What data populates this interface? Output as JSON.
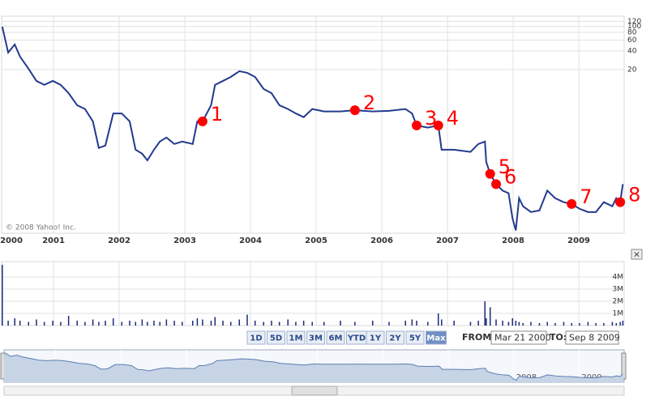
{
  "copyright": "© 2008 Yahoo! Inc.",
  "chart_data": [
    {
      "type": "line",
      "log_scale": true,
      "grid": true,
      "color": "#233a8f",
      "marker_color": "#ff0000",
      "xlim": [
        2000.21,
        2009.69
      ],
      "xticks": [
        2000,
        2001,
        2002,
        2003,
        2004,
        2005,
        2006,
        2007,
        2008,
        2009
      ],
      "ylim": [
        0.045,
        146
      ],
      "yticks": [
        120,
        100,
        80,
        60,
        40,
        20
      ],
      "x": [
        2000.22,
        2000.31,
        2000.41,
        2000.49,
        2000.62,
        2000.74,
        2000.86,
        2000.99,
        2001.11,
        2001.23,
        2001.36,
        2001.48,
        2001.6,
        2001.69,
        2001.79,
        2001.91,
        2002.04,
        2002.16,
        2002.25,
        2002.35,
        2002.43,
        2002.53,
        2002.62,
        2002.72,
        2002.84,
        2002.96,
        2003.12,
        2003.19,
        2003.27,
        2003.4,
        2003.46,
        2003.58,
        2003.7,
        2003.83,
        2003.95,
        2004.07,
        2004.2,
        2004.32,
        2004.44,
        2004.57,
        2004.69,
        2004.81,
        2004.94,
        2005.12,
        2005.37,
        2005.59,
        2005.86,
        2006.11,
        2006.36,
        2006.46,
        2006.53,
        2006.7,
        2006.86,
        2006.91,
        2007.1,
        2007.35,
        2007.47,
        2007.57,
        2007.59,
        2007.65,
        2007.74,
        2007.84,
        2007.93,
        2007.99,
        2008.04,
        2008.09,
        2008.15,
        2008.27,
        2008.4,
        2008.52,
        2008.64,
        2008.77,
        2008.89,
        2009.01,
        2009.14,
        2009.26,
        2009.38,
        2009.51,
        2009.57,
        2009.63,
        2009.67
      ],
      "values": [
        98.8,
        37.7,
        50.9,
        32.4,
        20.6,
        13.1,
        11.3,
        13.1,
        11.3,
        8.3,
        5.3,
        4.6,
        2.9,
        1.08,
        1.18,
        3.9,
        3.9,
        2.9,
        1.01,
        0.87,
        0.68,
        1.01,
        1.37,
        1.59,
        1.25,
        1.37,
        1.25,
        2.9,
        2.9,
        5.3,
        11.3,
        13.1,
        15.2,
        18.8,
        17.7,
        15.2,
        9.7,
        8.3,
        5.3,
        4.6,
        3.9,
        3.4,
        4.6,
        4.2,
        4.2,
        4.4,
        4.2,
        4.3,
        4.6,
        3.9,
        2.5,
        2.3,
        2.5,
        1.01,
        1.01,
        0.93,
        1.25,
        1.37,
        0.64,
        0.41,
        0.28,
        0.22,
        0.2,
        0.078,
        0.05,
        0.166,
        0.123,
        0.099,
        0.105,
        0.22,
        0.166,
        0.143,
        0.134,
        0.112,
        0.099,
        0.099,
        0.143,
        0.123,
        0.166,
        0.143,
        0.28
      ],
      "annotations": [
        {
          "text": "1",
          "x": 2003.27,
          "y": 2.9
        },
        {
          "text": "2",
          "x": 2005.59,
          "y": 4.4
        },
        {
          "text": "3",
          "x": 2006.53,
          "y": 2.5
        },
        {
          "text": "4",
          "x": 2006.86,
          "y": 2.5
        },
        {
          "text": "5",
          "x": 2007.65,
          "y": 0.41
        },
        {
          "text": "6",
          "x": 2007.74,
          "y": 0.28
        },
        {
          "text": "7",
          "x": 2008.89,
          "y": 0.134
        },
        {
          "text": "8",
          "x": 2009.63,
          "y": 0.143
        }
      ]
    },
    {
      "type": "bar",
      "color": "#1a2a7a",
      "ylim": [
        0,
        5270000
      ],
      "yticks": [
        {
          "value": 4000000,
          "label": "4M"
        },
        {
          "value": 3000000,
          "label": "3M"
        },
        {
          "value": 2000000,
          "label": "2M"
        },
        {
          "value": 1000000,
          "label": "1M"
        }
      ],
      "values": [
        5000000,
        400000,
        600000,
        400000,
        300000,
        500000,
        300000,
        400000,
        300000,
        800000,
        400000,
        300000,
        500000,
        300000,
        400000,
        600000,
        300000,
        400000,
        300000,
        500000,
        300000,
        400000,
        300000,
        500000,
        400000,
        300000,
        400000,
        600000,
        500000,
        400000,
        700000,
        400000,
        300000,
        500000,
        900000,
        400000,
        300000,
        400000,
        300000,
        500000,
        300000,
        400000,
        300000,
        300000,
        400000,
        300000,
        400000,
        300000,
        400000,
        500000,
        400000,
        300000,
        1000000,
        500000,
        400000,
        300000,
        400000,
        2000000,
        600000,
        1500000,
        500000,
        400000,
        300000,
        600000,
        400000,
        300000,
        200000,
        300000,
        200000,
        300000,
        200000,
        300000,
        200000,
        200000,
        300000,
        200000,
        200000,
        300000,
        200000,
        300000,
        400000
      ]
    }
  ],
  "controls": {
    "ranges": [
      "1D",
      "5D",
      "1M",
      "3M",
      "6M",
      "YTD",
      "1Y",
      "2Y",
      "5Y",
      "Max"
    ],
    "active": "Max",
    "from_label": "FROM:",
    "from": "Mar 21 2000",
    "to_label": "TO:",
    "to": "Sep 8 2009",
    "close": "×"
  }
}
